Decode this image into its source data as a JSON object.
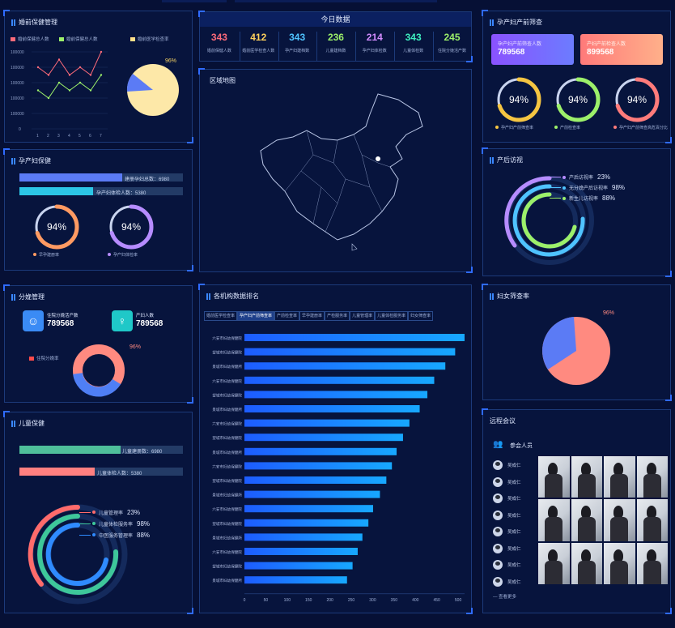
{
  "panels": {
    "premarital": {
      "title": "婚前保健管理",
      "legend": [
        "婚前保健总人数",
        "婚前保健总人数",
        "婚前医学检查率"
      ],
      "y_ticks": [
        "100000",
        "100000",
        "100000",
        "100000",
        "100000",
        "0"
      ],
      "x_ticks": [
        "1",
        "2",
        "3",
        "4",
        "5",
        "6",
        "7"
      ],
      "pie_pct": "96%"
    },
    "today": {
      "title": "今日数据",
      "stats": [
        {
          "value": "343",
          "label": "婚前保健人数",
          "color": "#ff6b7a"
        },
        {
          "value": "412",
          "label": "婚前医学检查人数",
          "color": "#ffd15c"
        },
        {
          "value": "343",
          "label": "孕产妇建档数",
          "color": "#4fc3ff"
        },
        {
          "value": "236",
          "label": "儿童建档数",
          "color": "#9cf06a"
        },
        {
          "value": "214",
          "label": "孕产妇体检数",
          "color": "#d38cff"
        },
        {
          "value": "343",
          "label": "儿童体检数",
          "color": "#3ef0c0"
        },
        {
          "value": "245",
          "label": "住院分娩活产数",
          "color": "#9cf06a"
        }
      ]
    },
    "map": {
      "title": "区域地图"
    },
    "prenatal": {
      "title": "孕产妇产前筛查",
      "card1_label": "孕产妇产前筛查人数",
      "card1_value": "789568",
      "card2_label": "产妇产前检查人数",
      "card2_value": "899568",
      "rings": [
        {
          "pct": "94%",
          "label": "孕产妇产前筛查率",
          "color": "#f5c542"
        },
        {
          "pct": "94%",
          "label": "产前检查率",
          "color": "#9cf06a"
        },
        {
          "pct": "94%",
          "label": "孕产妇产前筛查高危百分比",
          "color": "#ff7b7b"
        }
      ]
    },
    "maternal": {
      "title": "孕产妇保健",
      "bar1_label": "建册孕妇总数：6980",
      "bar2_label": "孕产妇体检人数：5380",
      "rings": [
        {
          "pct": "94%",
          "label": "早孕建册率",
          "color": "#ff9a62"
        },
        {
          "pct": "94%",
          "label": "孕产妇体检率",
          "color": "#b68cff"
        }
      ]
    },
    "postnatal": {
      "title": "产后访视",
      "items": [
        {
          "label": "产后访视率",
          "value": "23%",
          "color": "#b68cff"
        },
        {
          "label": "无分娩产后访视率",
          "value": "98%",
          "color": "#4fc3ff"
        },
        {
          "label": "新生儿访视率",
          "value": "88%",
          "color": "#9cf06a"
        }
      ]
    },
    "delivery": {
      "title": "分娩管理",
      "stat1_label": "住院分娩活产数",
      "stat1_value": "789568",
      "stat2_label": "产妇人数",
      "stat2_value": "789568",
      "legend": "住院分娩率",
      "donut_pct": "96%"
    },
    "ranking": {
      "title": "各机构数据排名",
      "tabs": [
        "婚前医学检查率",
        "孕产妇产前筛查率",
        "产前检查率",
        "早孕建册率",
        "产检服务率",
        "儿童管理率",
        "儿童体检服务率",
        "妇女筛查率"
      ],
      "rows": [
        {
          "name": "六安市妇幼保健院",
          "value": 515
        },
        {
          "name": "望城市妇幼保健院",
          "value": 493
        },
        {
          "name": "景城市妇幼保健所",
          "value": 470
        },
        {
          "name": "六安市妇幼保健院",
          "value": 444
        },
        {
          "name": "望城市妇幼保健院",
          "value": 428
        },
        {
          "name": "景城市妇幼保健所",
          "value": 410
        },
        {
          "name": "六安市妇幼保健院",
          "value": 386
        },
        {
          "name": "望城市妇幼保健院",
          "value": 371
        },
        {
          "name": "景城市妇幼保健所",
          "value": 356
        },
        {
          "name": "六安市妇幼保健院",
          "value": 345
        },
        {
          "name": "望城市妇幼保健院",
          "value": 332
        },
        {
          "name": "景城市妇幼保健所",
          "value": 317
        },
        {
          "name": "六安市妇幼保健院",
          "value": 301
        },
        {
          "name": "望城市妇幼保健院",
          "value": 290
        },
        {
          "name": "景城市妇幼保健所",
          "value": 276
        },
        {
          "name": "六安市妇幼保健院",
          "value": 265
        },
        {
          "name": "望城市妇幼保健院",
          "value": 253
        },
        {
          "name": "景城市妇幼保健所",
          "value": 240
        }
      ],
      "x_ticks": [
        "0",
        "50",
        "100",
        "150",
        "200",
        "250",
        "300",
        "350",
        "400",
        "450",
        "500"
      ]
    },
    "women": {
      "title": "妇女筛查率",
      "pie_pct": "96%"
    },
    "child": {
      "title": "儿童保健",
      "bar1_label": "儿童建册数：6980",
      "bar2_label": "儿童体检人数：5380",
      "items": [
        {
          "label": "儿童管理率",
          "value": "23%",
          "color": "#ff6b6b"
        },
        {
          "label": "儿童体检服务率",
          "value": "98%",
          "color": "#3ec79a"
        },
        {
          "label": "中医服务管理率",
          "value": "88%",
          "color": "#2f8bff"
        }
      ]
    },
    "meeting": {
      "title": "远程会议",
      "attendees_label": "参会人员",
      "attendees": [
        "吴成仁",
        "吴成仁",
        "吴成仁",
        "吴成仁",
        "吴成仁",
        "吴成仁",
        "吴成仁",
        "吴成仁"
      ],
      "more": "查看更多"
    }
  },
  "chart_data": [
    {
      "type": "line",
      "x": [
        1,
        2,
        3,
        4,
        5,
        6,
        7
      ],
      "series": [
        {
          "name": "婚前保健总人数",
          "values": [
            8,
            7,
            9,
            7,
            8,
            7,
            10
          ]
        },
        {
          "name": "婚前保健总人数",
          "values": [
            5,
            4,
            6,
            5,
            6,
            5,
            7
          ]
        }
      ],
      "colors": [
        "#ff6b7a",
        "#9cf06a"
      ]
    },
    {
      "type": "pie",
      "values": [
        96,
        4
      ],
      "labels": [
        "96%",
        ""
      ]
    },
    {
      "type": "bar",
      "orientation": "horizontal",
      "xlim": [
        0,
        500
      ]
    }
  ]
}
